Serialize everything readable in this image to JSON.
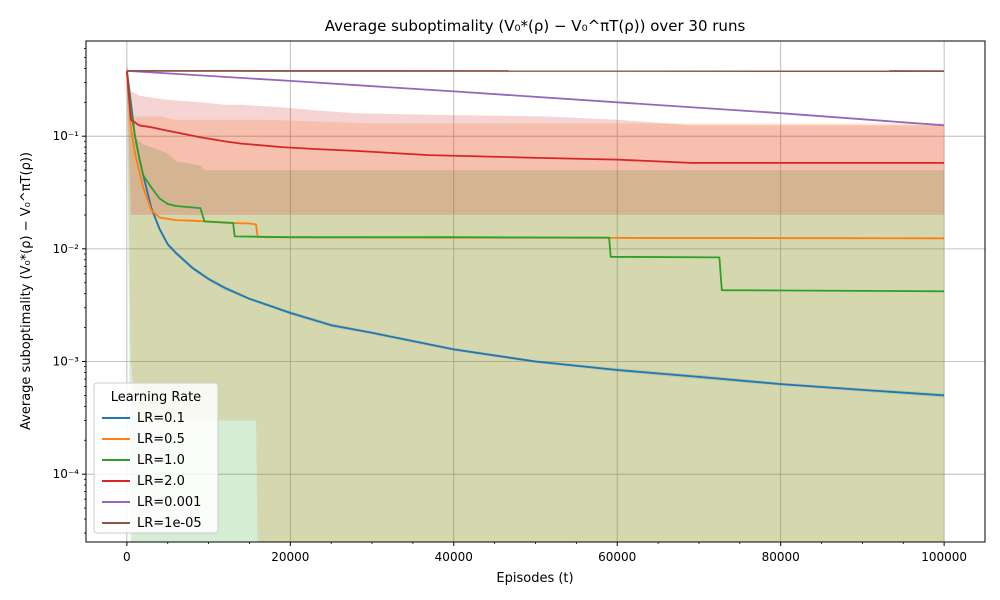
{
  "chart_data": {
    "type": "line",
    "title": "Average suboptimality (V₀*(ρ) − V₀^πT(ρ)) over 30 runs",
    "xlabel": "Episodes (t)",
    "ylabel": "Average suboptimality (V₀*(ρ) − V₀^πT(ρ))",
    "xlim": [
      -5000,
      105000
    ],
    "ylim": [
      2.5e-05,
      0.7
    ],
    "yscale": "log",
    "grid": true,
    "x_ticks": [
      0,
      20000,
      40000,
      60000,
      80000,
      100000
    ],
    "x_tick_labels": [
      "0",
      "20000",
      "40000",
      "60000",
      "80000",
      "100000"
    ],
    "y_ticks": [
      0.0001,
      0.001,
      0.01,
      0.1
    ],
    "y_tick_labels": [
      "10⁻⁴",
      "10⁻³",
      "10⁻²",
      "10⁻¹"
    ],
    "legend_title": "Learning Rate",
    "legend_position": "lower-left",
    "series": [
      {
        "name": "LR=0.1",
        "color": "#1f77b4",
        "x": [
          0,
          500,
          1000,
          1500,
          2000,
          3000,
          4000,
          5000,
          6000,
          8000,
          10000,
          12000,
          15000,
          20000,
          25000,
          30000,
          40000,
          50000,
          60000,
          70000,
          80000,
          90000,
          100000
        ],
        "values": [
          0.38,
          0.2,
          0.1,
          0.065,
          0.045,
          0.023,
          0.015,
          0.011,
          0.0092,
          0.0068,
          0.0054,
          0.0045,
          0.0036,
          0.0027,
          0.0021,
          0.0018,
          0.00128,
          0.001,
          0.00084,
          0.00073,
          0.00063,
          0.00056,
          0.0005
        ],
        "band_lower": [
          0.34,
          0.18,
          0.092,
          0.06,
          0.042,
          0.0215,
          0.014,
          0.0105,
          0.0088,
          0.0065,
          0.0052,
          0.0043,
          0.0035,
          0.0026,
          0.00202,
          0.00174,
          0.00124,
          0.00097,
          0.00081,
          0.0007,
          0.00061,
          0.00054,
          0.00048
        ],
        "band_upper": [
          0.42,
          0.22,
          0.108,
          0.07,
          0.048,
          0.0245,
          0.016,
          0.0115,
          0.0096,
          0.0071,
          0.0056,
          0.0047,
          0.0037,
          0.0028,
          0.00218,
          0.00186,
          0.00132,
          0.00103,
          0.00087,
          0.00076,
          0.00065,
          0.00058,
          0.00052
        ]
      },
      {
        "name": "LR=0.5",
        "color": "#ff7f0e",
        "x": [
          0,
          500,
          1000,
          2000,
          3000,
          4000,
          6000,
          8000,
          10000,
          12000,
          15000,
          15800,
          16000,
          17000,
          30000,
          60000,
          100000
        ],
        "values": [
          0.38,
          0.12,
          0.07,
          0.035,
          0.022,
          0.019,
          0.018,
          0.0178,
          0.0175,
          0.017,
          0.0168,
          0.0165,
          0.0128,
          0.0127,
          0.0126,
          0.0125,
          0.0124
        ],
        "band_lower": [
          0.3,
          0.001,
          0.0004,
          0.0003,
          0.0003,
          0.0003,
          0.0003,
          0.0003,
          0.0003,
          0.0003,
          0.0003,
          0.0003,
          2.5e-05,
          2.5e-05,
          2.5e-05,
          2.5e-05,
          2.5e-05
        ],
        "band_upper": [
          0.45,
          0.15,
          0.15,
          0.15,
          0.15,
          0.15,
          0.14,
          0.14,
          0.14,
          0.14,
          0.14,
          0.14,
          0.14,
          0.14,
          0.13,
          0.13,
          0.13
        ]
      },
      {
        "name": "LR=1.0",
        "color": "#2ca02c",
        "x": [
          0,
          500,
          1000,
          1500,
          2000,
          3000,
          4000,
          5000,
          6000,
          9000,
          9500,
          13000,
          13200,
          20000,
          40000,
          59000,
          59200,
          72500,
          72800,
          100000
        ],
        "values": [
          0.38,
          0.17,
          0.1,
          0.065,
          0.045,
          0.035,
          0.028,
          0.025,
          0.024,
          0.023,
          0.0175,
          0.017,
          0.0129,
          0.0127,
          0.0127,
          0.0126,
          0.0085,
          0.0084,
          0.0043,
          0.0042
        ],
        "band_lower": [
          0.3,
          2.5e-05,
          2.5e-05,
          2.5e-05,
          2.5e-05,
          2.5e-05,
          2.5e-05,
          2.5e-05,
          2.5e-05,
          2.5e-05,
          2.5e-05,
          2.5e-05,
          2.5e-05,
          2.5e-05,
          2.5e-05,
          2.5e-05,
          2.5e-05,
          2.5e-05,
          2.5e-05,
          2.5e-05
        ],
        "band_upper": [
          0.45,
          0.12,
          0.1,
          0.09,
          0.085,
          0.08,
          0.075,
          0.07,
          0.06,
          0.055,
          0.05,
          0.05,
          0.05,
          0.05,
          0.05,
          0.05,
          0.05,
          0.05,
          0.05,
          0.05
        ]
      },
      {
        "name": "LR=2.0",
        "color": "#d62728",
        "x": [
          0,
          500,
          1500,
          3000,
          5000,
          9000,
          12000,
          14000,
          19000,
          23000,
          28000,
          37000,
          51000,
          60000,
          69000,
          100000
        ],
        "values": [
          0.38,
          0.14,
          0.125,
          0.12,
          0.112,
          0.098,
          0.09,
          0.086,
          0.08,
          0.077,
          0.074,
          0.068,
          0.064,
          0.062,
          0.058,
          0.058
        ],
        "band_lower": [
          0.3,
          0.02,
          0.02,
          0.02,
          0.02,
          0.02,
          0.02,
          0.02,
          0.02,
          0.02,
          0.02,
          0.02,
          0.02,
          0.02,
          0.02,
          0.02
        ],
        "band_upper": [
          0.45,
          0.25,
          0.23,
          0.22,
          0.21,
          0.2,
          0.19,
          0.19,
          0.18,
          0.17,
          0.16,
          0.155,
          0.15,
          0.14,
          0.125,
          0.125
        ]
      },
      {
        "name": "LR=0.001",
        "color": "#9467bd",
        "x": [
          0,
          20000,
          40000,
          60000,
          80000,
          100000
        ],
        "values": [
          0.38,
          0.31,
          0.25,
          0.2,
          0.16,
          0.125
        ]
      },
      {
        "name": "LR=1e-05",
        "color": "#8c564b",
        "x": [
          0,
          100000
        ],
        "values": [
          0.38,
          0.378
        ]
      }
    ]
  }
}
